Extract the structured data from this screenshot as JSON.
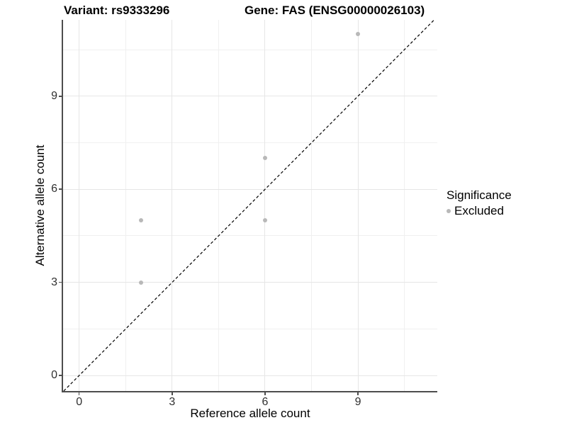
{
  "title": {
    "variant": "Variant: rs9333296",
    "gene": "Gene: FAS (ENSG00000026103)"
  },
  "chart_data": {
    "type": "scatter",
    "title": "Variant: rs9333296  Gene: FAS (ENSG00000026103)",
    "xlabel": "Reference allele count",
    "ylabel": "Alternative allele count",
    "series": [
      {
        "name": "Excluded",
        "color": "#b8b8b8",
        "points": [
          {
            "x": 2,
            "y": 3
          },
          {
            "x": 2,
            "y": 5
          },
          {
            "x": 6,
            "y": 5
          },
          {
            "x": 6,
            "y": 7
          },
          {
            "x": 9,
            "y": 11
          }
        ]
      }
    ],
    "x_ticks": [
      0,
      3,
      6,
      9
    ],
    "y_ticks": [
      0,
      3,
      6,
      9
    ],
    "x_minor_ticks": [
      1.5,
      4.5,
      7.5,
      10.5
    ],
    "y_minor_ticks": [
      1.5,
      4.5,
      7.5,
      10.5
    ],
    "xlim": [
      -0.52,
      11.56
    ],
    "ylim": [
      -0.5,
      11.46
    ],
    "grid": "on",
    "identity_line": {
      "style": "dashed",
      "color": "#000000",
      "equation": "y = x"
    },
    "legend_position": "right"
  },
  "legend": {
    "title": "Significance",
    "items": [
      {
        "label": "Excluded",
        "color": "#b8b8b8"
      }
    ]
  },
  "colors": {
    "point": "#b8b8b8",
    "grid_major": "#e6e6e6",
    "grid_minor": "#f0f0f0",
    "axis_line": "#4d4d4d",
    "background": "#ffffff"
  }
}
